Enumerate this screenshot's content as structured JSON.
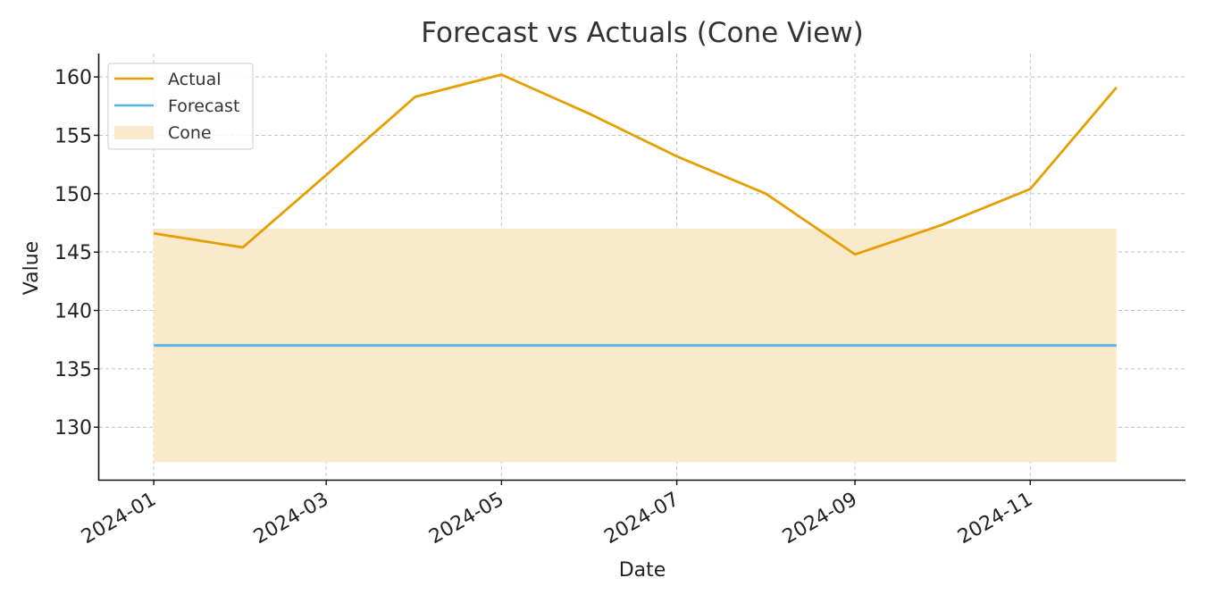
{
  "chart_data": {
    "type": "line",
    "title": "Forecast vs Actuals (Cone View)",
    "xlabel": "Date",
    "ylabel": "Value",
    "x": [
      "2024-01-01",
      "2024-02-01",
      "2024-03-01",
      "2024-04-01",
      "2024-05-01",
      "2024-06-01",
      "2024-07-01",
      "2024-08-01",
      "2024-09-01",
      "2024-10-01",
      "2024-11-01",
      "2024-12-01"
    ],
    "xlim": [
      "2023-12-13",
      "2024-12-25"
    ],
    "ylim": [
      125.5,
      162
    ],
    "xticks": [
      "2024-01",
      "2024-03",
      "2024-05",
      "2024-07",
      "2024-09",
      "2024-11"
    ],
    "yticks": [
      130,
      135,
      140,
      145,
      150,
      155,
      160
    ],
    "grid": true,
    "legend_position": "top-left",
    "series": [
      {
        "name": "Actual",
        "kind": "line",
        "color": "#E69F00",
        "values": [
          146.6,
          145.4,
          151.6,
          158.3,
          160.2,
          156.8,
          153.2,
          150.0,
          144.8,
          147.3,
          150.4,
          159.1
        ]
      },
      {
        "name": "Forecast",
        "kind": "line",
        "color": "#56B4E9",
        "values": [
          137.0,
          137.0,
          137.0,
          137.0,
          137.0,
          137.0,
          137.0,
          137.0,
          137.0,
          137.0,
          137.0,
          137.0
        ]
      },
      {
        "name": "Cone",
        "kind": "band",
        "color": "#F9EACB",
        "lower": [
          127.0,
          127.0,
          127.0,
          127.0,
          127.0,
          127.0,
          127.0,
          127.0,
          127.0,
          127.0,
          127.0,
          127.0
        ],
        "upper": [
          147.0,
          147.0,
          147.0,
          147.0,
          147.0,
          147.0,
          147.0,
          147.0,
          147.0,
          147.0,
          147.0,
          147.0
        ]
      }
    ]
  }
}
